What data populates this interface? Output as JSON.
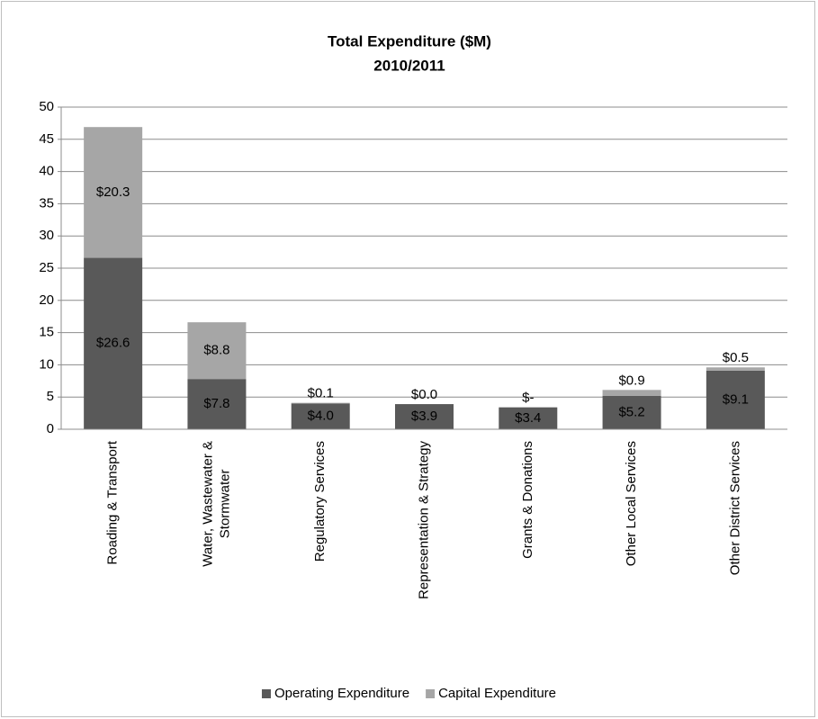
{
  "chart_data": {
    "type": "stacked_bar",
    "title": "Total Expenditure ($M)",
    "subtitle": "2010/2011",
    "categories": [
      "Roading & Transport",
      "Water, Wastewater & Stormwater",
      "Regulatory Services",
      "Representation & Strategy",
      "Grants & Donations",
      "Other Local Services",
      "Other District Services"
    ],
    "series": [
      {
        "name": "Operating Expenditure",
        "color": "#595959",
        "values": [
          26.6,
          7.8,
          4.0,
          3.9,
          3.4,
          5.2,
          9.1
        ],
        "value_labels": [
          "$26.6",
          "$7.8",
          "$4.0",
          "$3.9",
          "$3.4",
          "$5.2",
          "$9.1"
        ]
      },
      {
        "name": "Capital Expenditure",
        "color": "#a6a6a6",
        "values": [
          20.3,
          8.8,
          0.1,
          0.0,
          0,
          0.9,
          0.5
        ],
        "value_labels": [
          "$20.3",
          "$8.8",
          "$0.1",
          "$0.0",
          "$-",
          "$0.9",
          "$0.5"
        ]
      }
    ],
    "ylim": [
      0,
      50
    ],
    "yticks": [
      0,
      5,
      10,
      15,
      20,
      25,
      30,
      35,
      40,
      45,
      50
    ],
    "grid": true,
    "legend": "bottom"
  }
}
